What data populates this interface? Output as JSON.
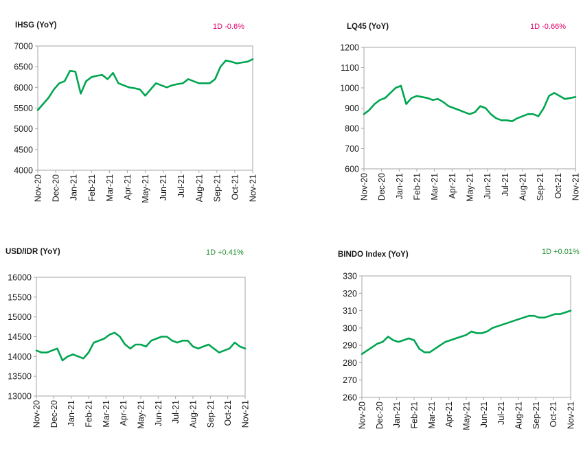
{
  "chart_data": [
    {
      "type": "line",
      "title": "IHSG (YoY)",
      "change_label": "1D -0.6%",
      "change_color": "#e0006a",
      "line_color": "#00a550",
      "ylim": [
        4000,
        7000
      ],
      "yticks": [
        4000,
        4500,
        5000,
        5500,
        6000,
        6500,
        7000
      ],
      "xtick_labels": [
        "Nov-20",
        "Dec-20",
        "Jan-21",
        "Feb-21",
        "Mar-21",
        "Apr-21",
        "May-21",
        "Jun-21",
        "Jul-21",
        "Aug-21",
        "Sep-21",
        "Oct-21",
        "Nov-21"
      ],
      "x": [
        0,
        0.3,
        0.6,
        0.9,
        1.2,
        1.5,
        1.8,
        2.1,
        2.4,
        2.7,
        3.0,
        3.3,
        3.6,
        3.9,
        4.2,
        4.5,
        4.8,
        5.1,
        5.4,
        5.7,
        6.0,
        6.3,
        6.6,
        6.9,
        7.2,
        7.5,
        7.8,
        8.1,
        8.4,
        8.7,
        9.0,
        9.3,
        9.6,
        9.9,
        10.2,
        10.5,
        10.8,
        11.1,
        11.4,
        11.7,
        12.0
      ],
      "values": [
        5450,
        5600,
        5750,
        5950,
        6100,
        6150,
        6400,
        6380,
        5850,
        6150,
        6250,
        6280,
        6300,
        6200,
        6350,
        6100,
        6050,
        6000,
        5980,
        5950,
        5800,
        5950,
        6100,
        6050,
        6000,
        6050,
        6080,
        6100,
        6200,
        6150,
        6100,
        6100,
        6100,
        6200,
        6500,
        6650,
        6620,
        6580,
        6600,
        6620,
        6680
      ],
      "series": [
        {
          "name": ""
        }
      ]
    },
    {
      "type": "line",
      "title": "LQ45 (YoY)",
      "change_label": "1D -0.66%",
      "change_color": "#e0006a",
      "line_color": "#00a550",
      "ylim": [
        600,
        1200
      ],
      "yticks": [
        600,
        700,
        800,
        900,
        1000,
        1100,
        1200
      ],
      "xtick_labels": [
        "Nov-20",
        "Dec-20",
        "Jan-21",
        "Feb-21",
        "Mar-21",
        "Apr-21",
        "May-21",
        "Jun-21",
        "Jul-21",
        "Aug-21",
        "Sep-21",
        "Oct-21",
        "Nov-21"
      ],
      "x": [
        0,
        0.3,
        0.6,
        0.9,
        1.2,
        1.5,
        1.8,
        2.1,
        2.4,
        2.7,
        3.0,
        3.3,
        3.6,
        3.9,
        4.2,
        4.5,
        4.8,
        5.1,
        5.4,
        5.7,
        6.0,
        6.3,
        6.6,
        6.9,
        7.2,
        7.5,
        7.8,
        8.1,
        8.4,
        8.7,
        9.0,
        9.3,
        9.6,
        9.9,
        10.2,
        10.5,
        10.8,
        11.1,
        11.4,
        11.7,
        12.0
      ],
      "values": [
        870,
        890,
        920,
        940,
        950,
        975,
        1000,
        1010,
        920,
        950,
        960,
        955,
        950,
        940,
        945,
        930,
        910,
        900,
        890,
        880,
        870,
        880,
        910,
        900,
        870,
        850,
        840,
        840,
        835,
        850,
        860,
        870,
        870,
        860,
        900,
        960,
        975,
        960,
        945,
        950,
        955
      ],
      "series": [
        {
          "name": ""
        }
      ]
    },
    {
      "type": "line",
      "title": "USD/IDR  (YoY)",
      "change_label": "1D +0.41%",
      "change_color": "#1e8c2e",
      "line_color": "#00a550",
      "ylim": [
        13000,
        16000
      ],
      "yticks": [
        13000,
        13500,
        14000,
        14500,
        15000,
        15500,
        16000
      ],
      "xtick_labels": [
        "Nov-20",
        "Dec-20",
        "Jan-21",
        "Feb-21",
        "Mar-21",
        "Apr-21",
        "May-21",
        "Jun-21",
        "Jul-21",
        "Aug-21",
        "Sep-21",
        "Oct-21",
        "Nov-21"
      ],
      "x": [
        0,
        0.3,
        0.6,
        0.9,
        1.2,
        1.5,
        1.8,
        2.1,
        2.4,
        2.7,
        3.0,
        3.3,
        3.6,
        3.9,
        4.2,
        4.5,
        4.8,
        5.1,
        5.4,
        5.7,
        6.0,
        6.3,
        6.6,
        6.9,
        7.2,
        7.5,
        7.8,
        8.1,
        8.4,
        8.7,
        9.0,
        9.3,
        9.6,
        9.9,
        10.2,
        10.5,
        10.8,
        11.1,
        11.4,
        11.7,
        12.0
      ],
      "values": [
        14150,
        14100,
        14100,
        14150,
        14200,
        13900,
        14000,
        14050,
        14000,
        13950,
        14100,
        14350,
        14400,
        14450,
        14550,
        14600,
        14500,
        14300,
        14200,
        14300,
        14300,
        14250,
        14400,
        14450,
        14500,
        14500,
        14400,
        14350,
        14400,
        14400,
        14250,
        14200,
        14250,
        14300,
        14200,
        14100,
        14150,
        14200,
        14350,
        14250,
        14200
      ],
      "series": [
        {
          "name": ""
        }
      ]
    },
    {
      "type": "line",
      "title": "BINDO Index (YoY)",
      "change_label": "1D +0.01%",
      "change_color": "#1e8c2e",
      "line_color": "#00a550",
      "ylim": [
        260,
        330
      ],
      "yticks": [
        260,
        270,
        280,
        290,
        300,
        310,
        320,
        330
      ],
      "xtick_labels": [
        "Nov-20",
        "Dec-20",
        "Jan-21",
        "Feb-21",
        "Mar-21",
        "Apr-21",
        "May-21",
        "Jun-21",
        "Jul-21",
        "Aug-21",
        "Sep-21",
        "Oct-21",
        "Nov-21"
      ],
      "x": [
        0,
        0.3,
        0.6,
        0.9,
        1.2,
        1.5,
        1.8,
        2.1,
        2.4,
        2.7,
        3.0,
        3.3,
        3.6,
        3.9,
        4.2,
        4.5,
        4.8,
        5.1,
        5.4,
        5.7,
        6.0,
        6.3,
        6.6,
        6.9,
        7.2,
        7.5,
        7.8,
        8.1,
        8.4,
        8.7,
        9.0,
        9.3,
        9.6,
        9.9,
        10.2,
        10.5,
        10.8,
        11.1,
        11.4,
        11.7,
        12.0
      ],
      "values": [
        285,
        287,
        289,
        291,
        292,
        295,
        293,
        292,
        293,
        294,
        293,
        288,
        286,
        286,
        288,
        290,
        292,
        293,
        294,
        295,
        296,
        298,
        297,
        297,
        298,
        300,
        301,
        302,
        303,
        304,
        305,
        306,
        307,
        307,
        306,
        306,
        307,
        308,
        308,
        309,
        310
      ],
      "series": [
        {
          "name": ""
        }
      ]
    }
  ]
}
